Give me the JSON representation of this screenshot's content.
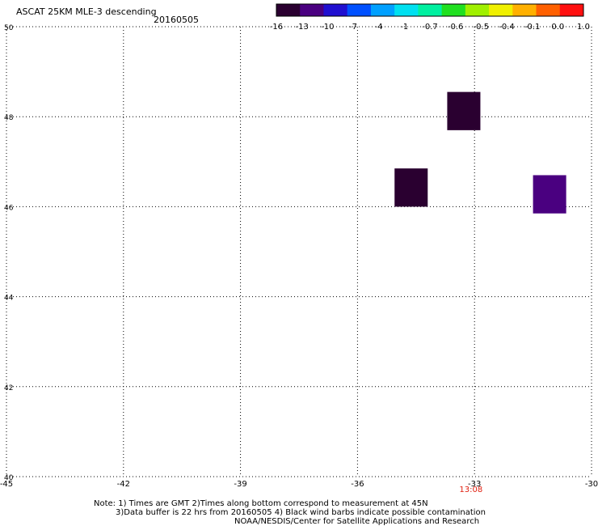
{
  "header": {
    "title": "ASCAT 25KM MLE-3 descending",
    "date": "20160505"
  },
  "colorbar": {
    "tick_labels": [
      "-16",
      "-13",
      "-10",
      "-7",
      "-4",
      "-1",
      "-0.7",
      "-0.6",
      "-0.5",
      "-0.4",
      "-0.1",
      "0.0",
      "1.0"
    ],
    "colors": [
      "#2a0030",
      "#4a0080",
      "#2010d0",
      "#0050ff",
      "#00a0ff",
      "#00e0f0",
      "#00f0a0",
      "#20e020",
      "#a0f000",
      "#f0f000",
      "#ffb000",
      "#ff6000",
      "#ff1010"
    ]
  },
  "chart_data": {
    "type": "heatmap",
    "title": "ASCAT 25KM MLE-3 descending",
    "subtitle": "20160505",
    "x_ticks": [
      -45,
      -42,
      -39,
      -36,
      -33,
      -30
    ],
    "y_ticks": [
      40,
      42,
      44,
      46,
      48,
      50
    ],
    "xlim": [
      -45,
      -30
    ],
    "ylim": [
      40,
      50
    ],
    "grid": true,
    "cells": [
      {
        "lon_min": -33.7,
        "lon_max": -32.85,
        "lat_min": 47.7,
        "lat_max": 48.55,
        "value": -16,
        "color": "#2a0030"
      },
      {
        "lon_min": -35.05,
        "lon_max": -34.2,
        "lat_min": 46.0,
        "lat_max": 46.85,
        "value": -16,
        "color": "#2a0030"
      },
      {
        "lon_min": -31.5,
        "lon_max": -30.65,
        "lat_min": 45.85,
        "lat_max": 46.7,
        "value": -13,
        "color": "#4a0080"
      }
    ],
    "time_label": "13:08",
    "time_label_lon": -33.1
  },
  "footer": {
    "line1": "Note: 1) Times are GMT 2)Times along bottom correspond to measurement at 45N",
    "line2": "3)Data buffer is 22 hrs from 20160505 4) Black wind barbs indicate possible contamination",
    "line3": "NOAA/NESDIS/Center for Satellite Applications and Research"
  }
}
